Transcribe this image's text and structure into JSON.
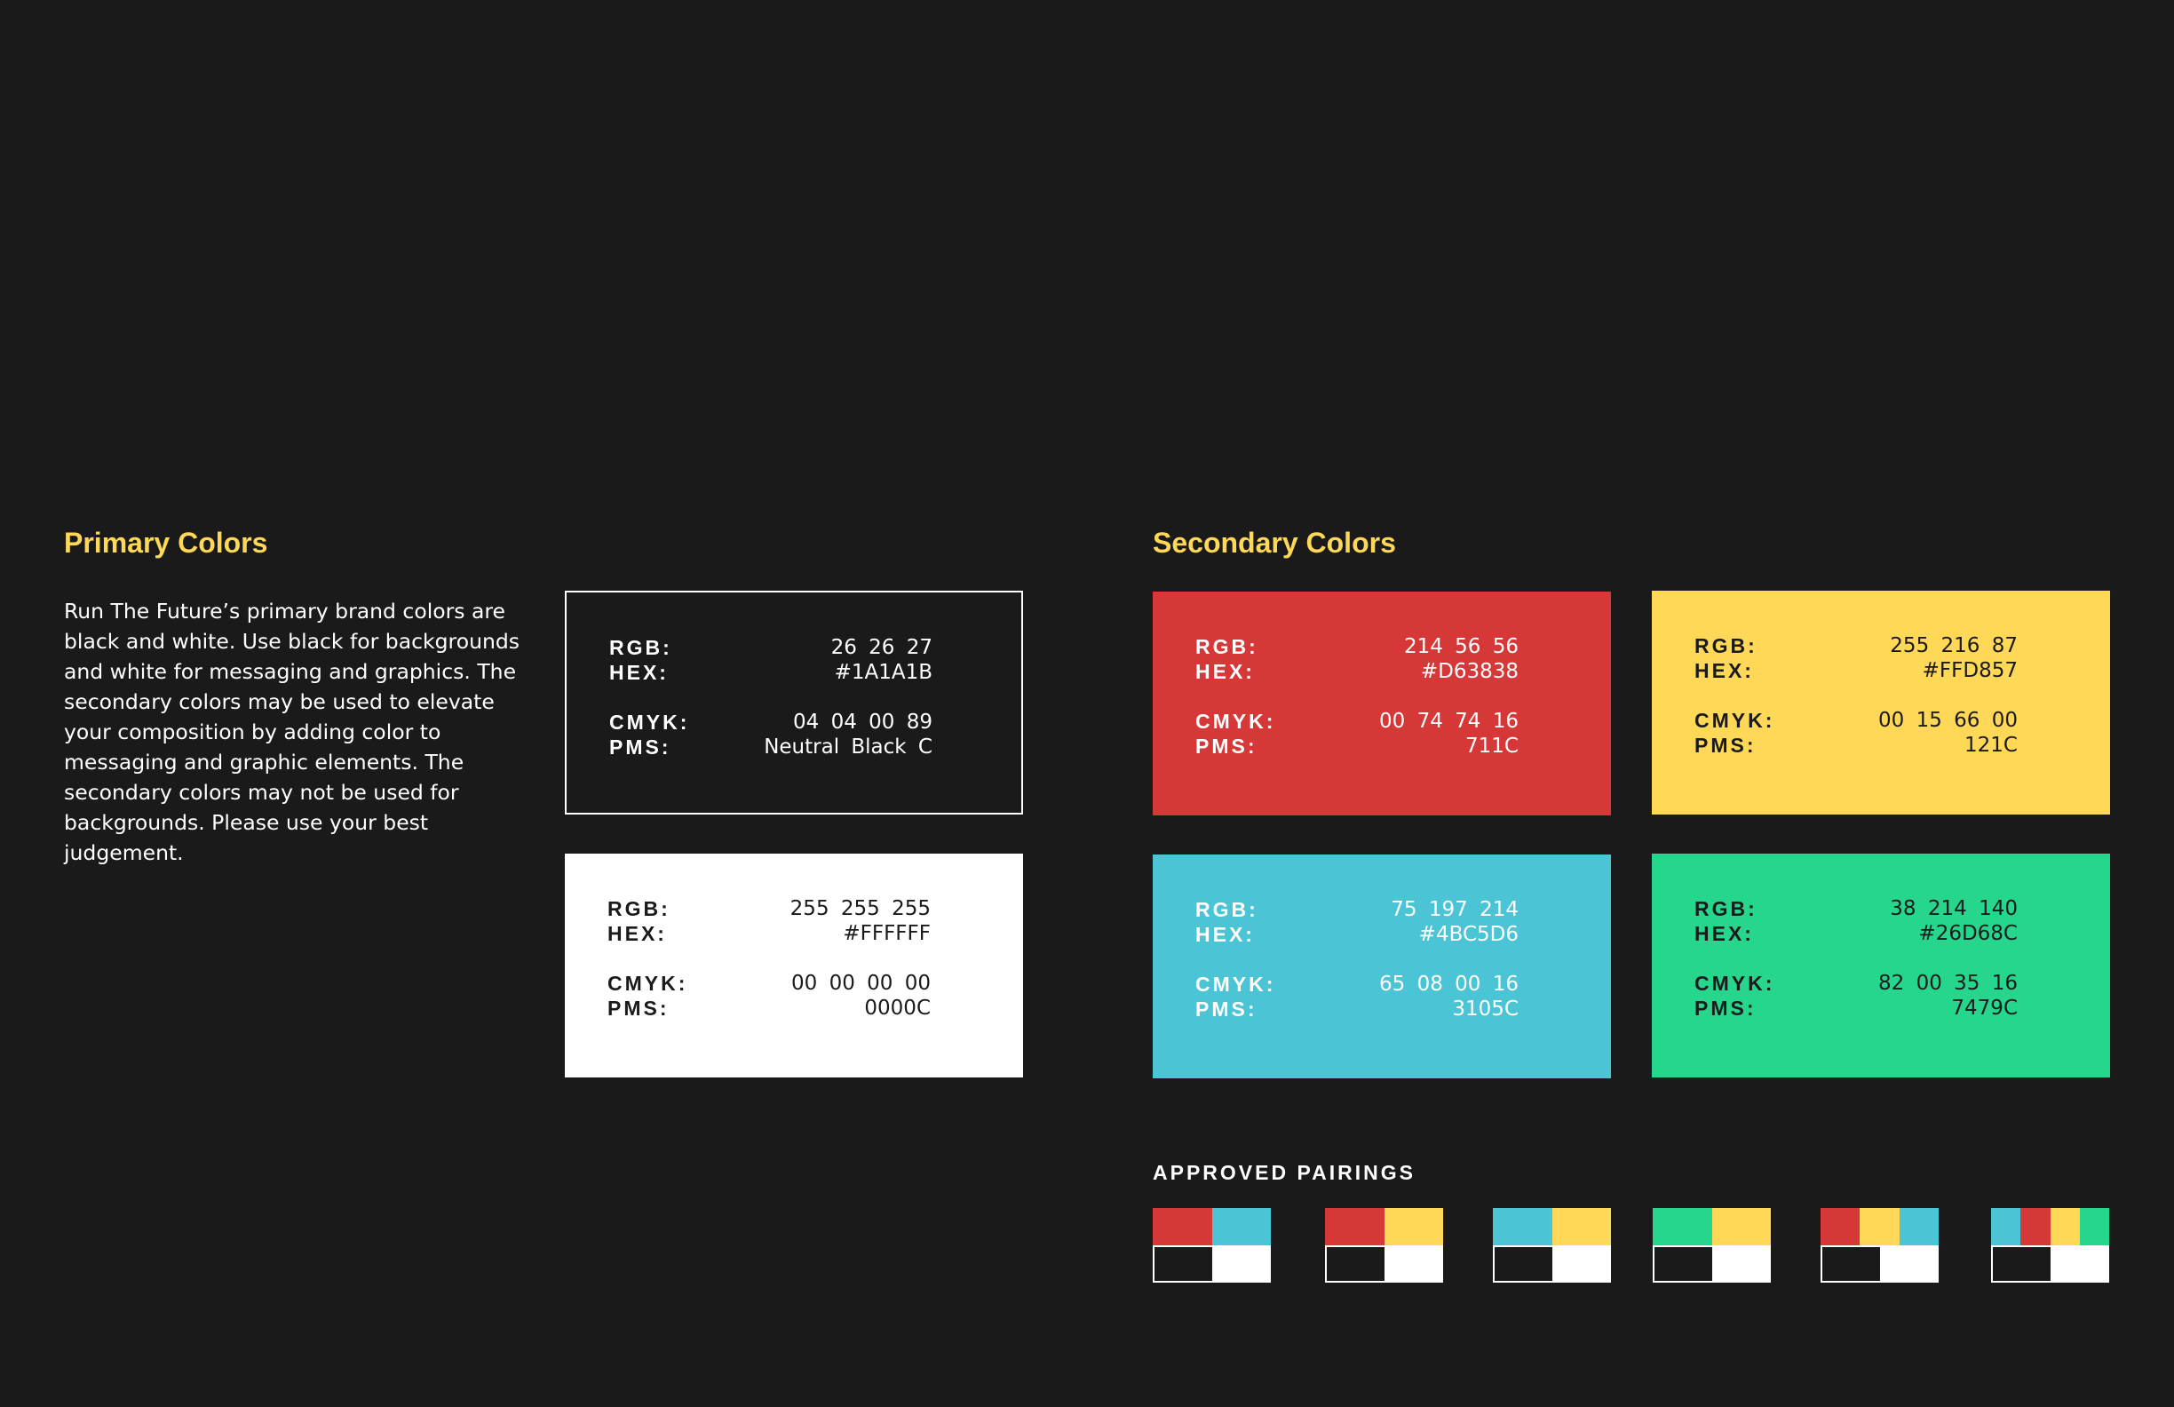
{
  "primary": {
    "title": "Primary Colors",
    "description": "Run The Future’s primary brand colors are black and white. Use black for backgrounds and white for messaging and graphics. The secondary colors may be used to elevate your composition by adding color to messaging and graphic elements. The secondary colors may not be used for backgrounds. Please use your best judgement.",
    "swatches": [
      {
        "name": "Black",
        "color": "#1A1A1B",
        "text_color": "#FFFFFF",
        "outlined": true,
        "rgb_label": "RGB:",
        "rgb": "26 26 27",
        "hex_label": "HEX:",
        "hex": "#1A1A1B",
        "cmyk_label": "CMYK:",
        "cmyk": "04 04 00 89",
        "pms_label": "PMS:",
        "pms": "Neutral Black C"
      },
      {
        "name": "White",
        "color": "#FFFFFF",
        "text_color": "#1A1A1B",
        "outlined": false,
        "rgb_label": "RGB:",
        "rgb": "255 255 255",
        "hex_label": "HEX:",
        "hex": "#FFFFFF",
        "cmyk_label": "CMYK:",
        "cmyk": "00 00 00 00",
        "pms_label": "PMS:",
        "pms": "0000C"
      }
    ]
  },
  "secondary": {
    "title": "Secondary Colors",
    "swatches": [
      {
        "name": "Red",
        "color": "#D63838",
        "text_color": "#FFFFFF",
        "rgb_label": "RGB:",
        "rgb": "214 56 56",
        "hex_label": "HEX:",
        "hex": "#D63838",
        "cmyk_label": "CMYK:",
        "cmyk": "00 74 74 16",
        "pms_label": "PMS:",
        "pms": "711C"
      },
      {
        "name": "Yellow",
        "color": "#FFD857",
        "text_color": "#1A1A1B",
        "rgb_label": "RGB:",
        "rgb": "255 216 87",
        "hex_label": "HEX:",
        "hex": "#FFD857",
        "cmyk_label": "CMYK:",
        "cmyk": "00 15 66 00",
        "pms_label": "PMS:",
        "pms": "121C"
      },
      {
        "name": "Blue",
        "color": "#4BC5D6",
        "text_color": "#FFFFFF",
        "rgb_label": "RGB:",
        "rgb": "75 197 214",
        "hex_label": "HEX:",
        "hex": "#4BC5D6",
        "cmyk_label": "CMYK:",
        "cmyk": "65 08 00 16",
        "pms_label": "PMS:",
        "pms": "3105C"
      },
      {
        "name": "Green",
        "color": "#26D68C",
        "text_color": "#1A1A1B",
        "rgb_label": "RGB:",
        "rgb": "38 214 140",
        "hex_label": "HEX:",
        "hex": "#26D68C",
        "cmyk_label": "CMYK:",
        "cmyk": "82 00 35 16",
        "pms_label": "PMS:",
        "pms": "7479C"
      }
    ]
  },
  "pairings": {
    "title": "APPROVED PAIRINGS",
    "items": [
      [
        "#D63838",
        "#4BC5D6"
      ],
      [
        "#D63838",
        "#FFD857"
      ],
      [
        "#4BC5D6",
        "#FFD857"
      ],
      [
        "#26D68C",
        "#FFD857"
      ],
      [
        "#D63838",
        "#FFD857",
        "#4BC5D6"
      ],
      [
        "#4BC5D6",
        "#D63838",
        "#FFD857",
        "#26D68C"
      ]
    ],
    "base_colors": [
      "#1A1A1B",
      "#FFFFFF"
    ]
  }
}
